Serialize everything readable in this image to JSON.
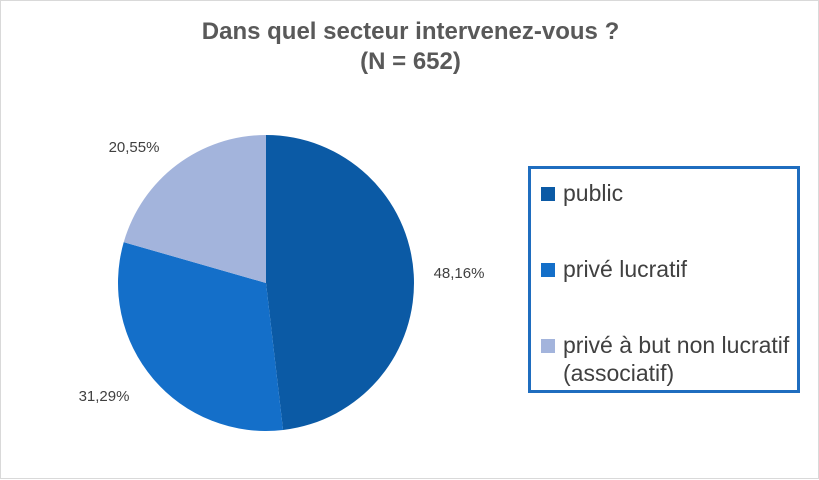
{
  "chart_data": {
    "type": "pie",
    "title": "Dans quel secteur intervenez-vous ?",
    "subtitle": "(N = 652)",
    "categories": [
      "public",
      "privé lucratif",
      "privé à but non lucratif (associatif)"
    ],
    "values": [
      48.16,
      31.29,
      20.55
    ],
    "labels": [
      "48,16%",
      "31,29%",
      "20,55%"
    ],
    "colors": [
      "#0b5aa5",
      "#146fc9",
      "#a3b4dc"
    ],
    "legend_position": "right"
  }
}
